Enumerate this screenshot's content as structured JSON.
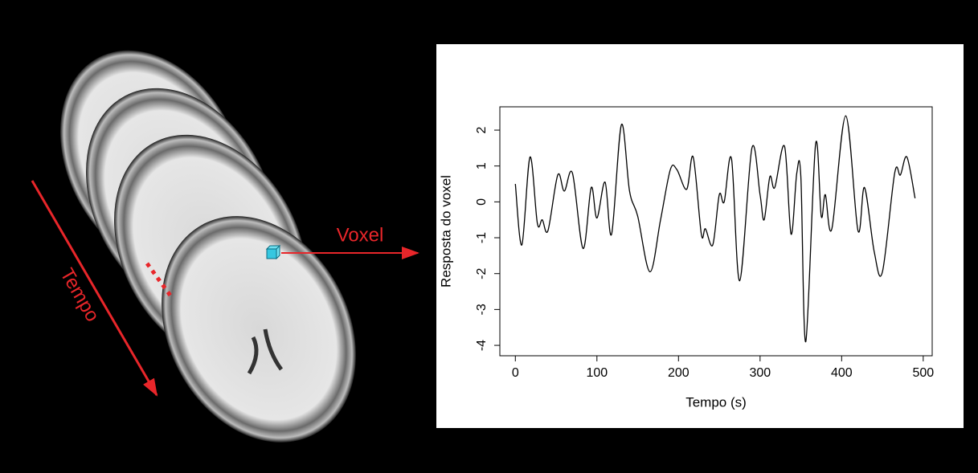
{
  "chart_data": {
    "type": "line",
    "xlabel": "Tempo (s)",
    "ylabel": "Resposta do voxel",
    "annotations": [
      "Voxel",
      "Tempo"
    ],
    "x": [
      0,
      8,
      18,
      27,
      33,
      40,
      52,
      60,
      70,
      83,
      93,
      100,
      110,
      118,
      130,
      140,
      150,
      165,
      178,
      190,
      198,
      210,
      218,
      228,
      233,
      242,
      250,
      256,
      265,
      275,
      290,
      300,
      305,
      312,
      318,
      330,
      338,
      345,
      350,
      356,
      368,
      375,
      380,
      388,
      405,
      420,
      428,
      440,
      450,
      465,
      472,
      480,
      490
    ],
    "series": [
      {
        "color": "#000000",
        "values": [
          0.5,
          -1.2,
          1.25,
          -0.6,
          -0.5,
          -0.8,
          0.75,
          0.3,
          0.8,
          -1.3,
          0.4,
          -0.45,
          0.55,
          -0.9,
          2.15,
          0.3,
          -0.4,
          -1.95,
          -0.5,
          0.9,
          0.9,
          0.35,
          1.25,
          -0.9,
          -0.75,
          -1.2,
          0.2,
          0,
          1.2,
          -2.2,
          1.5,
          0.2,
          -0.5,
          0.7,
          0.4,
          1.55,
          -0.9,
          0.8,
          0.7,
          -3.9,
          1.6,
          -0.4,
          0.2,
          -0.75,
          2.4,
          -0.8,
          0.4,
          -1.4,
          -1.95,
          0.8,
          0.75,
          1.25,
          0.1
        ]
      }
    ],
    "xlim": [
      -19,
      511
    ],
    "ylim": [
      -4.29,
      2.65
    ],
    "xticks": [
      0,
      100,
      200,
      300,
      400,
      500
    ],
    "yticks": [
      -4,
      -3,
      -2,
      -1,
      0,
      1,
      2
    ]
  }
}
